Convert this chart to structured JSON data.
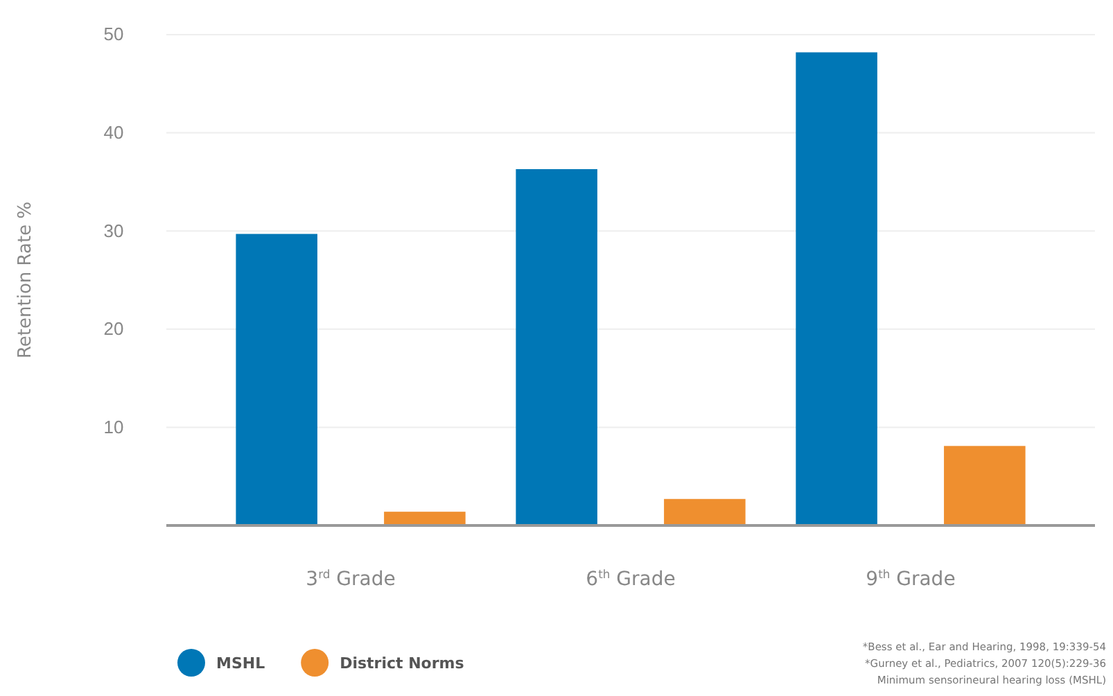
{
  "chart_data": {
    "type": "bar",
    "ylabel": "Retention Rate %",
    "categories": [
      "3$^{rd}$ Grade",
      "6$^{th}$ Grade",
      "9$^{th}$ Grade"
    ],
    "series": [
      {
        "name": "MSHL",
        "color": "#0077b6",
        "values": [
          29.7,
          36.3,
          48.2
        ]
      },
      {
        "name": "District Norms",
        "color": "#ef8f2f",
        "values": [
          1.4,
          2.7,
          8.1
        ]
      }
    ],
    "ylim": [
      0,
      50
    ],
    "yticks": [
      10,
      20,
      30,
      40,
      50
    ],
    "grid": "y",
    "legend": "bottom left",
    "annotations": [
      "*Bess et al., Ear and Hearing, 1998, 19:339-54",
      "*Gurney et al., Pediatrics, 2007 120(5):229-36",
      "Minimum sensorineural hearing loss (MSHL)"
    ]
  }
}
